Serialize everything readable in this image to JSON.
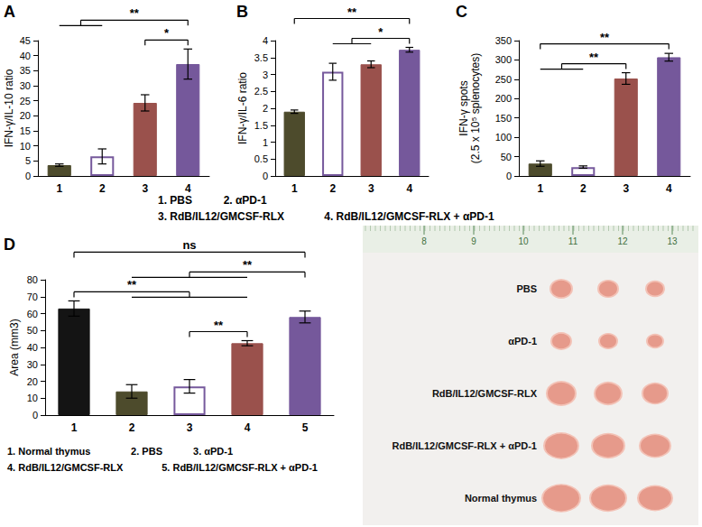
{
  "chart_data": [
    {
      "type": "bar",
      "panel": "A",
      "ylabel": "IFN-γ/IL-10 ratio",
      "categories": [
        "1",
        "2",
        "3",
        "4"
      ],
      "values": [
        3.6,
        6.5,
        24.3,
        37.2
      ],
      "errors": [
        0.4,
        2.5,
        2.7,
        5
      ],
      "colors": [
        "#4d4b2c",
        "#ffffff",
        "#9a514c",
        "#75589b"
      ],
      "ylim": [
        0,
        45
      ],
      "yticks": [
        0,
        5,
        10,
        15,
        20,
        25,
        30,
        35,
        40,
        45
      ],
      "grid": false,
      "significance": [
        {
          "from": [
            "3"
          ],
          "to": [
            "4"
          ],
          "text": "*"
        },
        {
          "from": [
            "1",
            "2"
          ],
          "to": [
            "4"
          ],
          "text": "**"
        }
      ]
    },
    {
      "type": "bar",
      "panel": "B",
      "ylabel": "IFN-γ/IL-6 ratio",
      "categories": [
        "1",
        "2",
        "3",
        "4"
      ],
      "values": [
        1.9,
        3.08,
        3.3,
        3.73
      ],
      "errors": [
        0.05,
        0.25,
        0.1,
        0.07
      ],
      "colors": [
        "#4d4b2c",
        "#ffffff",
        "#9a514c",
        "#75589b"
      ],
      "ylim": [
        0,
        4
      ],
      "yticks": [
        0,
        0.5,
        1,
        1.5,
        2,
        2.5,
        3,
        3.5,
        4
      ],
      "grid": false,
      "significance": [
        {
          "from": [
            "2",
            "3"
          ],
          "to": [
            "4"
          ],
          "text": "*"
        },
        {
          "from": [
            "1"
          ],
          "to": [
            "4"
          ],
          "text": "**"
        }
      ]
    },
    {
      "type": "bar",
      "panel": "C",
      "ylabel": "IFN-γ spots\n(2.5 x 10⁵ splenocytes)",
      "categories": [
        "1",
        "2",
        "3",
        "4"
      ],
      "values": [
        32,
        23,
        252,
        307
      ],
      "errors": [
        7,
        3,
        15,
        10
      ],
      "colors": [
        "#4d4b2c",
        "#ffffff",
        "#9a514c",
        "#75589b"
      ],
      "ylim": [
        0,
        350
      ],
      "yticks": [
        0,
        50,
        100,
        150,
        200,
        250,
        300,
        350
      ],
      "grid": false,
      "significance": [
        {
          "from": [
            "1",
            "2"
          ],
          "to": [
            "3"
          ],
          "text": "**"
        },
        {
          "from": [
            "1"
          ],
          "to": [
            "4"
          ],
          "text": "**"
        }
      ]
    },
    {
      "type": "bar",
      "panel": "D",
      "ylabel": "Area (mm3)",
      "categories": [
        "1",
        "2",
        "3",
        "4",
        "5"
      ],
      "values": [
        63,
        14,
        17,
        42.5,
        58
      ],
      "errors": [
        4.5,
        4,
        4,
        1.5,
        3.5
      ],
      "colors": [
        "#141414",
        "#4d4b2c",
        "#ffffff",
        "#9a514c",
        "#75589b"
      ],
      "ylim": [
        0,
        80
      ],
      "yticks": [
        0,
        10,
        20,
        30,
        40,
        50,
        60,
        70,
        80
      ],
      "grid": false,
      "significance": [
        {
          "from": [
            "3"
          ],
          "to": [
            "4"
          ],
          "text": "**"
        },
        {
          "from": [
            "1"
          ],
          "to": [
            "2",
            "3",
            "4"
          ],
          "text": "**"
        },
        {
          "from": [
            "2",
            "3",
            "4"
          ],
          "to": [
            "5"
          ],
          "text": "**"
        },
        {
          "from": [
            "1"
          ],
          "to": [
            "5"
          ],
          "text": "ns"
        }
      ]
    }
  ],
  "captions": [
    [
      [
        "1. PBS",
        "2. αPD-1"
      ],
      [
        "3. RdB/IL12/GMCSF-RLX",
        "4. RdB/IL12/GMCSF-RLX + αPD-1"
      ]
    ],
    [
      [
        "1. Normal thymus",
        "2. PBS",
        "3. αPD-1"
      ],
      [
        "4. RdB/IL12/GMCSF-RLX",
        "5. RdB/IL12/GMCSF-RLX + αPD-1"
      ]
    ]
  ],
  "photo": {
    "ruler": [
      8,
      9,
      10,
      11,
      12,
      13
    ],
    "rows": [
      "PBS",
      "αPD-1",
      "RdB/IL12/GMCSF-RLX",
      "RdB/IL12/GMCSF-RLX + αPD-1",
      "Normal thymus"
    ]
  }
}
